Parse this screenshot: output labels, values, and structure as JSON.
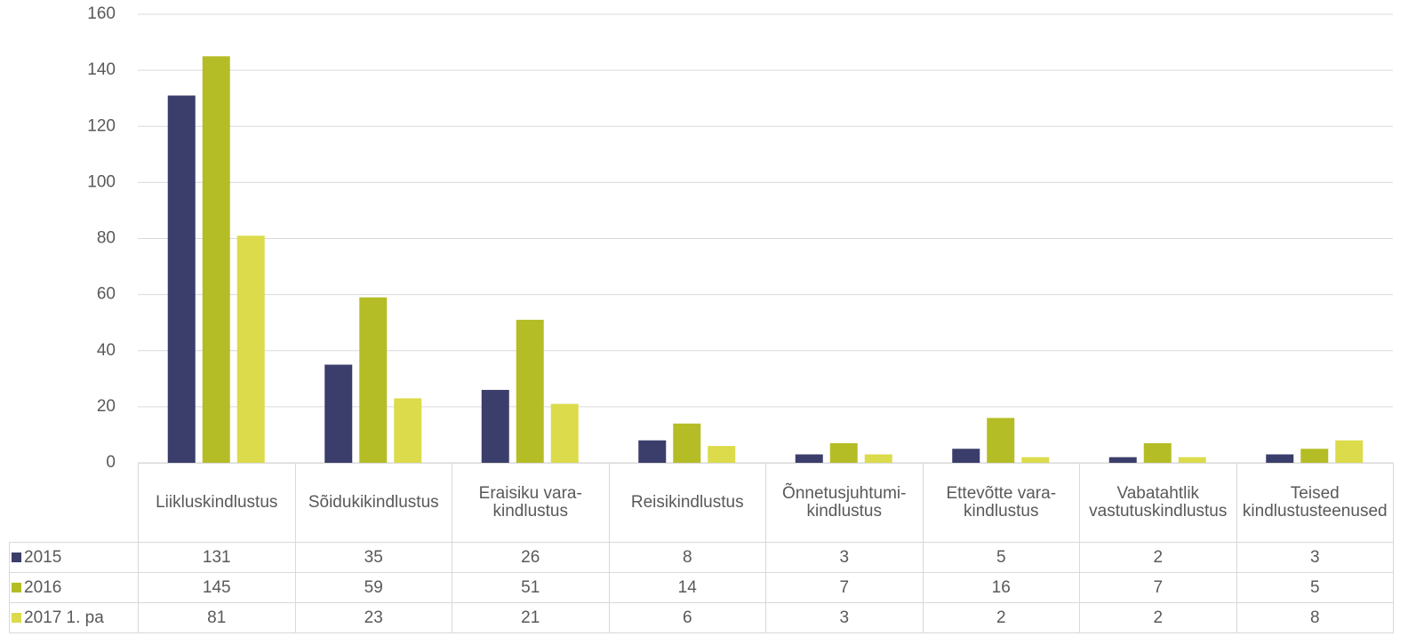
{
  "chart_data": {
    "type": "bar",
    "categories": [
      "Liikluskindlustus",
      "Sõidukikindlustus",
      "Eraisiku vara-kindlustus",
      "Reisikindlustus",
      "Õnnetusjuhtumi-kindlustus",
      "Ettevõtte vara-kindlustus",
      "Vabatahtlik vastutuskindlustus",
      "Teised kindlustusteenused"
    ],
    "series": [
      {
        "name": "2015",
        "color": "#3b3d6b",
        "values": [
          131,
          35,
          26,
          8,
          3,
          5,
          2,
          3
        ]
      },
      {
        "name": "2016",
        "color": "#b5bd26",
        "values": [
          145,
          59,
          51,
          14,
          7,
          16,
          7,
          5
        ]
      },
      {
        "name": "2017 1. pa",
        "color": "#dbdb4b",
        "values": [
          81,
          23,
          21,
          6,
          3,
          2,
          2,
          8
        ]
      }
    ],
    "ylim": [
      0,
      160
    ],
    "yticks": [
      0,
      20,
      40,
      60,
      80,
      100,
      120,
      140,
      160
    ],
    "grid": true
  }
}
